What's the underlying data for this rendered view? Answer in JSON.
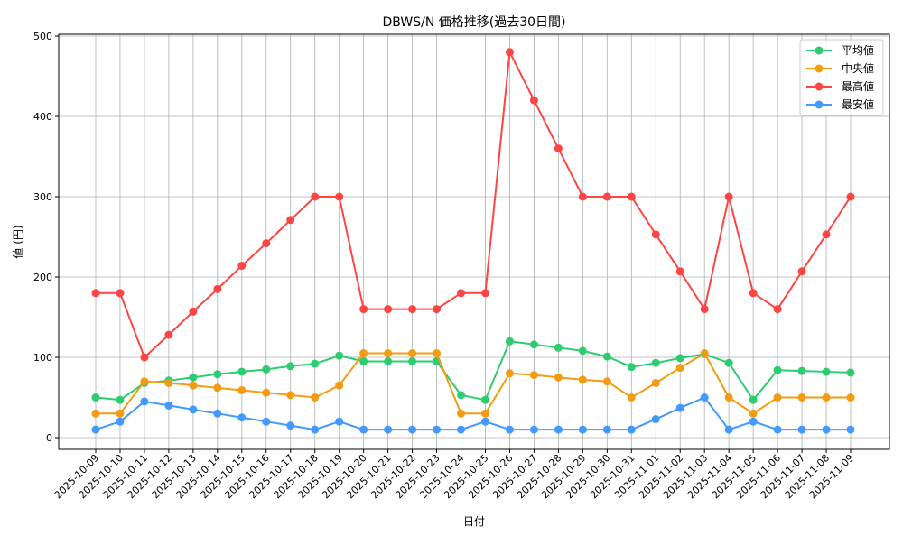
{
  "chart_data": {
    "type": "line",
    "title": "DBWS/N 価格推移(過去30日間)",
    "xlabel": "日付",
    "ylabel": "値 (円)",
    "ylim": [
      -15,
      505
    ],
    "yticks": [
      0,
      100,
      200,
      300,
      400,
      500
    ],
    "grid": true,
    "legend_position": "top-right",
    "x": [
      "2025-10-09",
      "2025-10-10",
      "2025-10-11",
      "2025-10-12",
      "2025-10-13",
      "2025-10-14",
      "2025-10-15",
      "2025-10-16",
      "2025-10-17",
      "2025-10-18",
      "2025-10-19",
      "2025-10-20",
      "2025-10-21",
      "2025-10-22",
      "2025-10-23",
      "2025-10-24",
      "2025-10-25",
      "2025-10-26",
      "2025-10-27",
      "2025-10-28",
      "2025-10-29",
      "2025-10-30",
      "2025-10-31",
      "2025-11-01",
      "2025-11-02",
      "2025-11-03",
      "2025-11-04",
      "2025-11-05",
      "2025-11-06",
      "2025-11-07",
      "2025-11-08",
      "2025-11-09"
    ],
    "series": [
      {
        "name": "平均値",
        "color": "#2ecc71",
        "values": [
          50,
          47,
          68,
          71,
          75,
          79,
          82,
          85,
          89,
          92,
          102,
          95,
          95,
          95,
          95,
          53,
          47,
          120,
          116,
          112,
          108,
          101,
          88,
          93,
          99,
          104,
          93,
          47,
          84,
          83,
          82,
          81
        ]
      },
      {
        "name": "中央値",
        "color": "#f39c12",
        "values": [
          30,
          30,
          70,
          68,
          65,
          62,
          59,
          56,
          53,
          50,
          65,
          105,
          105,
          105,
          105,
          30,
          30,
          80,
          78,
          75,
          72,
          70,
          50,
          68,
          87,
          105,
          50,
          30,
          50,
          50,
          50,
          50
        ]
      },
      {
        "name": "最高値",
        "color": "#ff4444",
        "values": [
          180,
          180,
          100,
          128,
          157,
          185,
          214,
          242,
          271,
          300,
          300,
          160,
          160,
          160,
          160,
          180,
          180,
          480,
          420,
          360,
          300,
          300,
          300,
          253,
          207,
          160,
          300,
          180,
          160,
          207,
          253,
          300
        ]
      },
      {
        "name": "最安値",
        "color": "#4499ff",
        "values": [
          10,
          20,
          45,
          40,
          35,
          30,
          25,
          20,
          15,
          10,
          20,
          10,
          10,
          10,
          10,
          10,
          20,
          10,
          10,
          10,
          10,
          10,
          10,
          23,
          37,
          50,
          10,
          20,
          10,
          10,
          10,
          10
        ]
      }
    ]
  }
}
